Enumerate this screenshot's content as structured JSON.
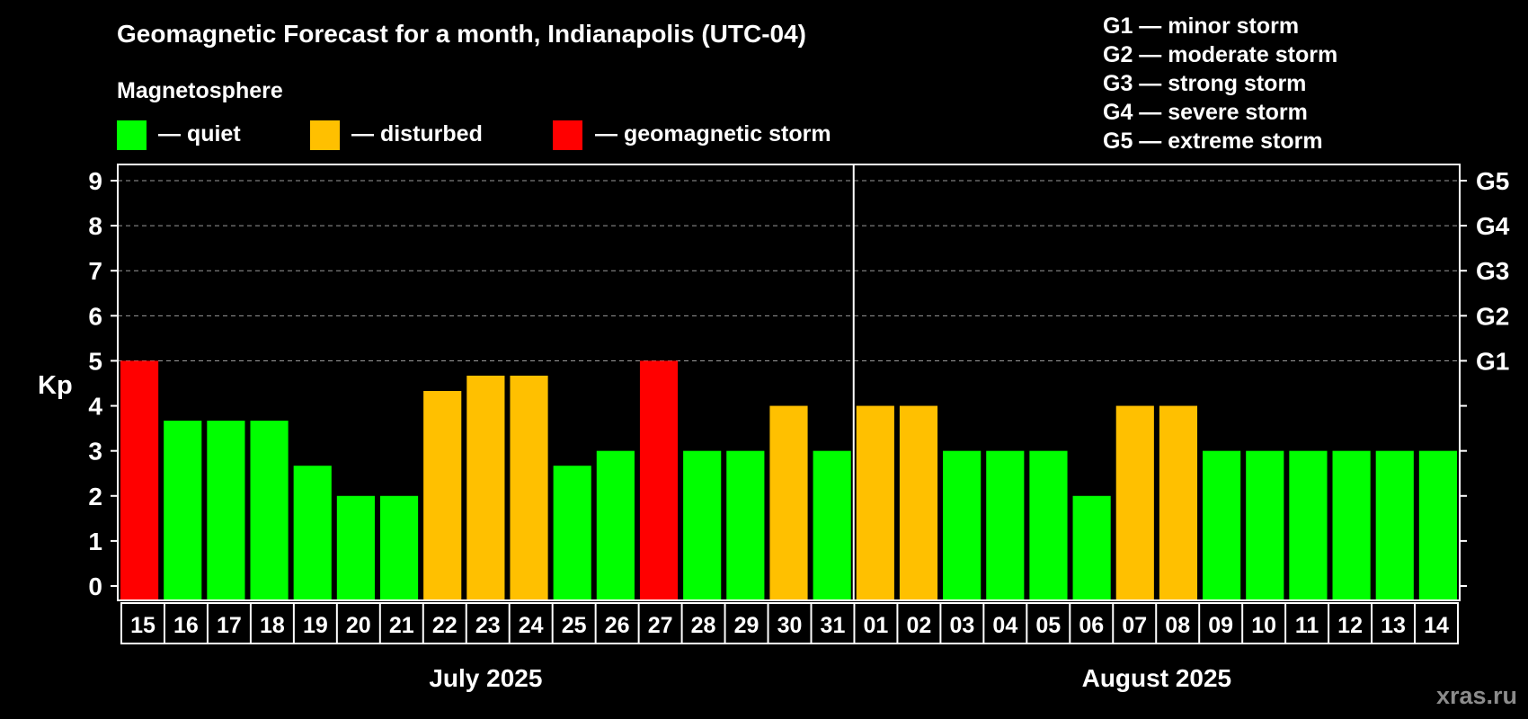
{
  "title": "Geomagnetic Forecast for a month, Indianapolis (UTC-04)",
  "legend": {
    "heading": "Magnetosphere",
    "items": [
      {
        "label": "— quiet",
        "color": "#00ff00"
      },
      {
        "label": "— disturbed",
        "color": "#ffc000"
      },
      {
        "label": "— geomagnetic storm",
        "color": "#ff0000"
      }
    ]
  },
  "storm_scale": [
    "G1 — minor storm",
    "G2 — moderate storm",
    "G3 — strong storm",
    "G4 — severe storm",
    "G5 — extreme storm"
  ],
  "watermark": "xras.ru",
  "colors": {
    "quiet": "#00ff00",
    "disturbed": "#ffc000",
    "storm": "#ff0000",
    "background": "#000000",
    "axes": "#ffffff"
  },
  "chart_data": {
    "type": "bar",
    "ylabel": "Kp",
    "ylim": [
      0,
      9
    ],
    "yticks": [
      "0",
      "1",
      "2",
      "3",
      "4",
      "5",
      "6",
      "7",
      "8",
      "9"
    ],
    "right_tick_labels": [
      {
        "kp": 5,
        "label": "G1"
      },
      {
        "kp": 6,
        "label": "G2"
      },
      {
        "kp": 7,
        "label": "G3"
      },
      {
        "kp": 8,
        "label": "G4"
      },
      {
        "kp": 9,
        "label": "G5"
      }
    ],
    "grid": "dashed horizontal at Kp 5-9",
    "months": [
      {
        "label": "July 2025",
        "count": 17
      },
      {
        "label": "August 2025",
        "count": 14
      }
    ],
    "categories": [
      "15",
      "16",
      "17",
      "18",
      "19",
      "20",
      "21",
      "22",
      "23",
      "24",
      "25",
      "26",
      "27",
      "28",
      "29",
      "30",
      "31",
      "01",
      "02",
      "03",
      "04",
      "05",
      "06",
      "07",
      "08",
      "09",
      "10",
      "11",
      "12",
      "13",
      "14"
    ],
    "values": [
      5,
      3.67,
      3.67,
      3.67,
      2.67,
      2,
      2,
      4.33,
      4.67,
      4.67,
      2.67,
      3,
      5,
      3,
      3,
      4,
      3,
      4,
      4,
      3,
      3,
      3,
      2,
      4,
      4,
      3,
      3,
      3,
      3,
      3,
      3
    ],
    "status": [
      "storm",
      "quiet",
      "quiet",
      "quiet",
      "quiet",
      "quiet",
      "quiet",
      "disturbed",
      "disturbed",
      "disturbed",
      "quiet",
      "quiet",
      "storm",
      "quiet",
      "quiet",
      "disturbed",
      "quiet",
      "disturbed",
      "disturbed",
      "quiet",
      "quiet",
      "quiet",
      "quiet",
      "disturbed",
      "disturbed",
      "quiet",
      "quiet",
      "quiet",
      "quiet",
      "quiet",
      "quiet"
    ]
  }
}
